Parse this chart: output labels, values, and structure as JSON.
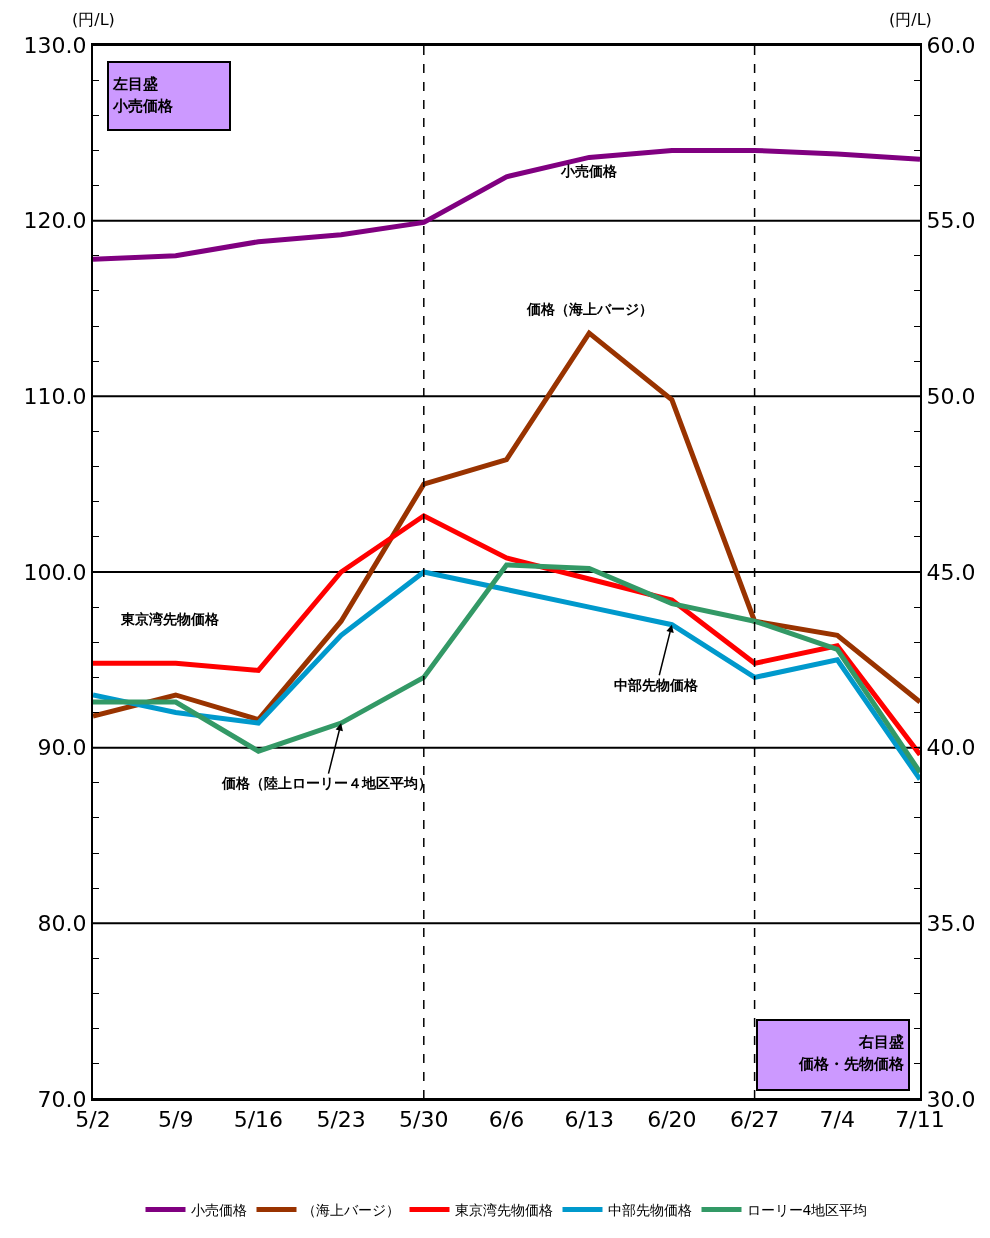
{
  "chart_data": {
    "type": "line",
    "categories": [
      "5/2",
      "5/9",
      "5/16",
      "5/23",
      "5/30",
      "6/6",
      "6/13",
      "6/20",
      "6/27",
      "7/4",
      "7/11"
    ],
    "series": [
      {
        "name": "小売価格",
        "color": "#800080",
        "values": [
          117.8,
          118.0,
          118.8,
          119.2,
          119.9,
          122.5,
          123.6,
          124.0,
          124.0,
          123.8,
          123.5
        ]
      },
      {
        "name": "（海上バージ）",
        "color": "#993300",
        "axis": "y2",
        "values": [
          40.9,
          41.5,
          40.8,
          43.6,
          47.5,
          48.2,
          51.8,
          49.9,
          43.6,
          43.2,
          41.3
        ]
      },
      {
        "name": "東京湾先物価格",
        "color": "#ff0000",
        "axis": "y2",
        "values": [
          42.4,
          42.4,
          42.2,
          45.0,
          46.6,
          45.4,
          44.8,
          44.2,
          42.4,
          42.9,
          39.8
        ]
      },
      {
        "name": "中部先物価格",
        "color": "#0099cc",
        "axis": "y2",
        "values": [
          41.5,
          41.0,
          40.7,
          43.2,
          45.0,
          44.5,
          44.0,
          43.5,
          42.0,
          42.5,
          39.1
        ]
      },
      {
        "name": "ローリー4地区平均",
        "color": "#339966",
        "axis": "y2",
        "values": [
          41.3,
          41.3,
          39.9,
          40.7,
          42.0,
          45.2,
          45.1,
          44.1,
          43.6,
          42.8,
          39.3
        ]
      }
    ],
    "ylabel": "(円/L)",
    "y2label": "(円/L)",
    "ylim": [
      70,
      130
    ],
    "yticks": [
      {
        "value": 70,
        "label": "70.0"
      },
      {
        "value": 72,
        "label": null
      },
      {
        "value": 74,
        "label": null
      },
      {
        "value": 76,
        "label": null
      },
      {
        "value": 78,
        "label": null
      },
      {
        "value": 80,
        "label": "80.0"
      },
      {
        "value": 82,
        "label": null
      },
      {
        "value": 84,
        "label": null
      },
      {
        "value": 86,
        "label": null
      },
      {
        "value": 88,
        "label": null
      },
      {
        "value": 90,
        "label": "90.0"
      },
      {
        "value": 92,
        "label": null
      },
      {
        "value": 94,
        "label": null
      },
      {
        "value": 96,
        "label": null
      },
      {
        "value": 98,
        "label": null
      },
      {
        "value": 100,
        "label": "100.0"
      },
      {
        "value": 102,
        "label": null
      },
      {
        "value": 104,
        "label": null
      },
      {
        "value": 106,
        "label": null
      },
      {
        "value": 108,
        "label": null
      },
      {
        "value": 110,
        "label": "110.0"
      },
      {
        "value": 112,
        "label": null
      },
      {
        "value": 114,
        "label": null
      },
      {
        "value": 116,
        "label": null
      },
      {
        "value": 118,
        "label": null
      },
      {
        "value": 120,
        "label": "120.0"
      },
      {
        "value": 122,
        "label": null
      },
      {
        "value": 124,
        "label": null
      },
      {
        "value": 126,
        "label": null
      },
      {
        "value": 128,
        "label": null
      },
      {
        "value": 130,
        "label": "130.0"
      }
    ],
    "y2lim": [
      30,
      60
    ],
    "y2ticks": [
      {
        "value": 30,
        "label": "30.0"
      },
      {
        "value": 31,
        "label": null
      },
      {
        "value": 32,
        "label": null
      },
      {
        "value": 33,
        "label": null
      },
      {
        "value": 34,
        "label": null
      },
      {
        "value": 35,
        "label": "35.0"
      },
      {
        "value": 36,
        "label": null
      },
      {
        "value": 37,
        "label": null
      },
      {
        "value": 38,
        "label": null
      },
      {
        "value": 39,
        "label": null
      },
      {
        "value": 40,
        "label": "40.0"
      },
      {
        "value": 41,
        "label": null
      },
      {
        "value": 42,
        "label": null
      },
      {
        "value": 43,
        "label": null
      },
      {
        "value": 44,
        "label": null
      },
      {
        "value": 45,
        "label": "45.0"
      },
      {
        "value": 46,
        "label": null
      },
      {
        "value": 47,
        "label": null
      },
      {
        "value": 48,
        "label": null
      },
      {
        "value": 49,
        "label": null
      },
      {
        "value": 50,
        "label": "50.0"
      },
      {
        "value": 51,
        "label": null
      },
      {
        "value": 52,
        "label": null
      },
      {
        "value": 53,
        "label": null
      },
      {
        "value": 54,
        "label": null
      },
      {
        "value": 55,
        "label": "55.0"
      },
      {
        "value": 56,
        "label": null
      },
      {
        "value": 57,
        "label": null
      },
      {
        "value": 58,
        "label": null
      },
      {
        "value": 59,
        "label": null
      },
      {
        "value": 60,
        "label": "60.0"
      }
    ],
    "grid": "y",
    "ref_lines": [
      {
        "axis": "x",
        "value": "5/30",
        "color": "#000000",
        "line_style": "dashed"
      },
      {
        "axis": "x",
        "value": "6/27",
        "color": "#000000",
        "line_style": "dashed"
      }
    ],
    "annotations": [
      "左目盛",
      "小売価格",
      "右目盛",
      "価格・先物価格",
      "小売価格",
      "価格（海上バージ）",
      "東京湾先物価格",
      {
        "text": "中部先物価格",
        "x": "6/20",
        "y": 97.0
      },
      {
        "text": "価格（陸上ローリー４地区平均）",
        "x": "5/23",
        "y": 91.4
      }
    ],
    "legend": "bottom",
    "marker": "none",
    "line_style": "solid"
  }
}
